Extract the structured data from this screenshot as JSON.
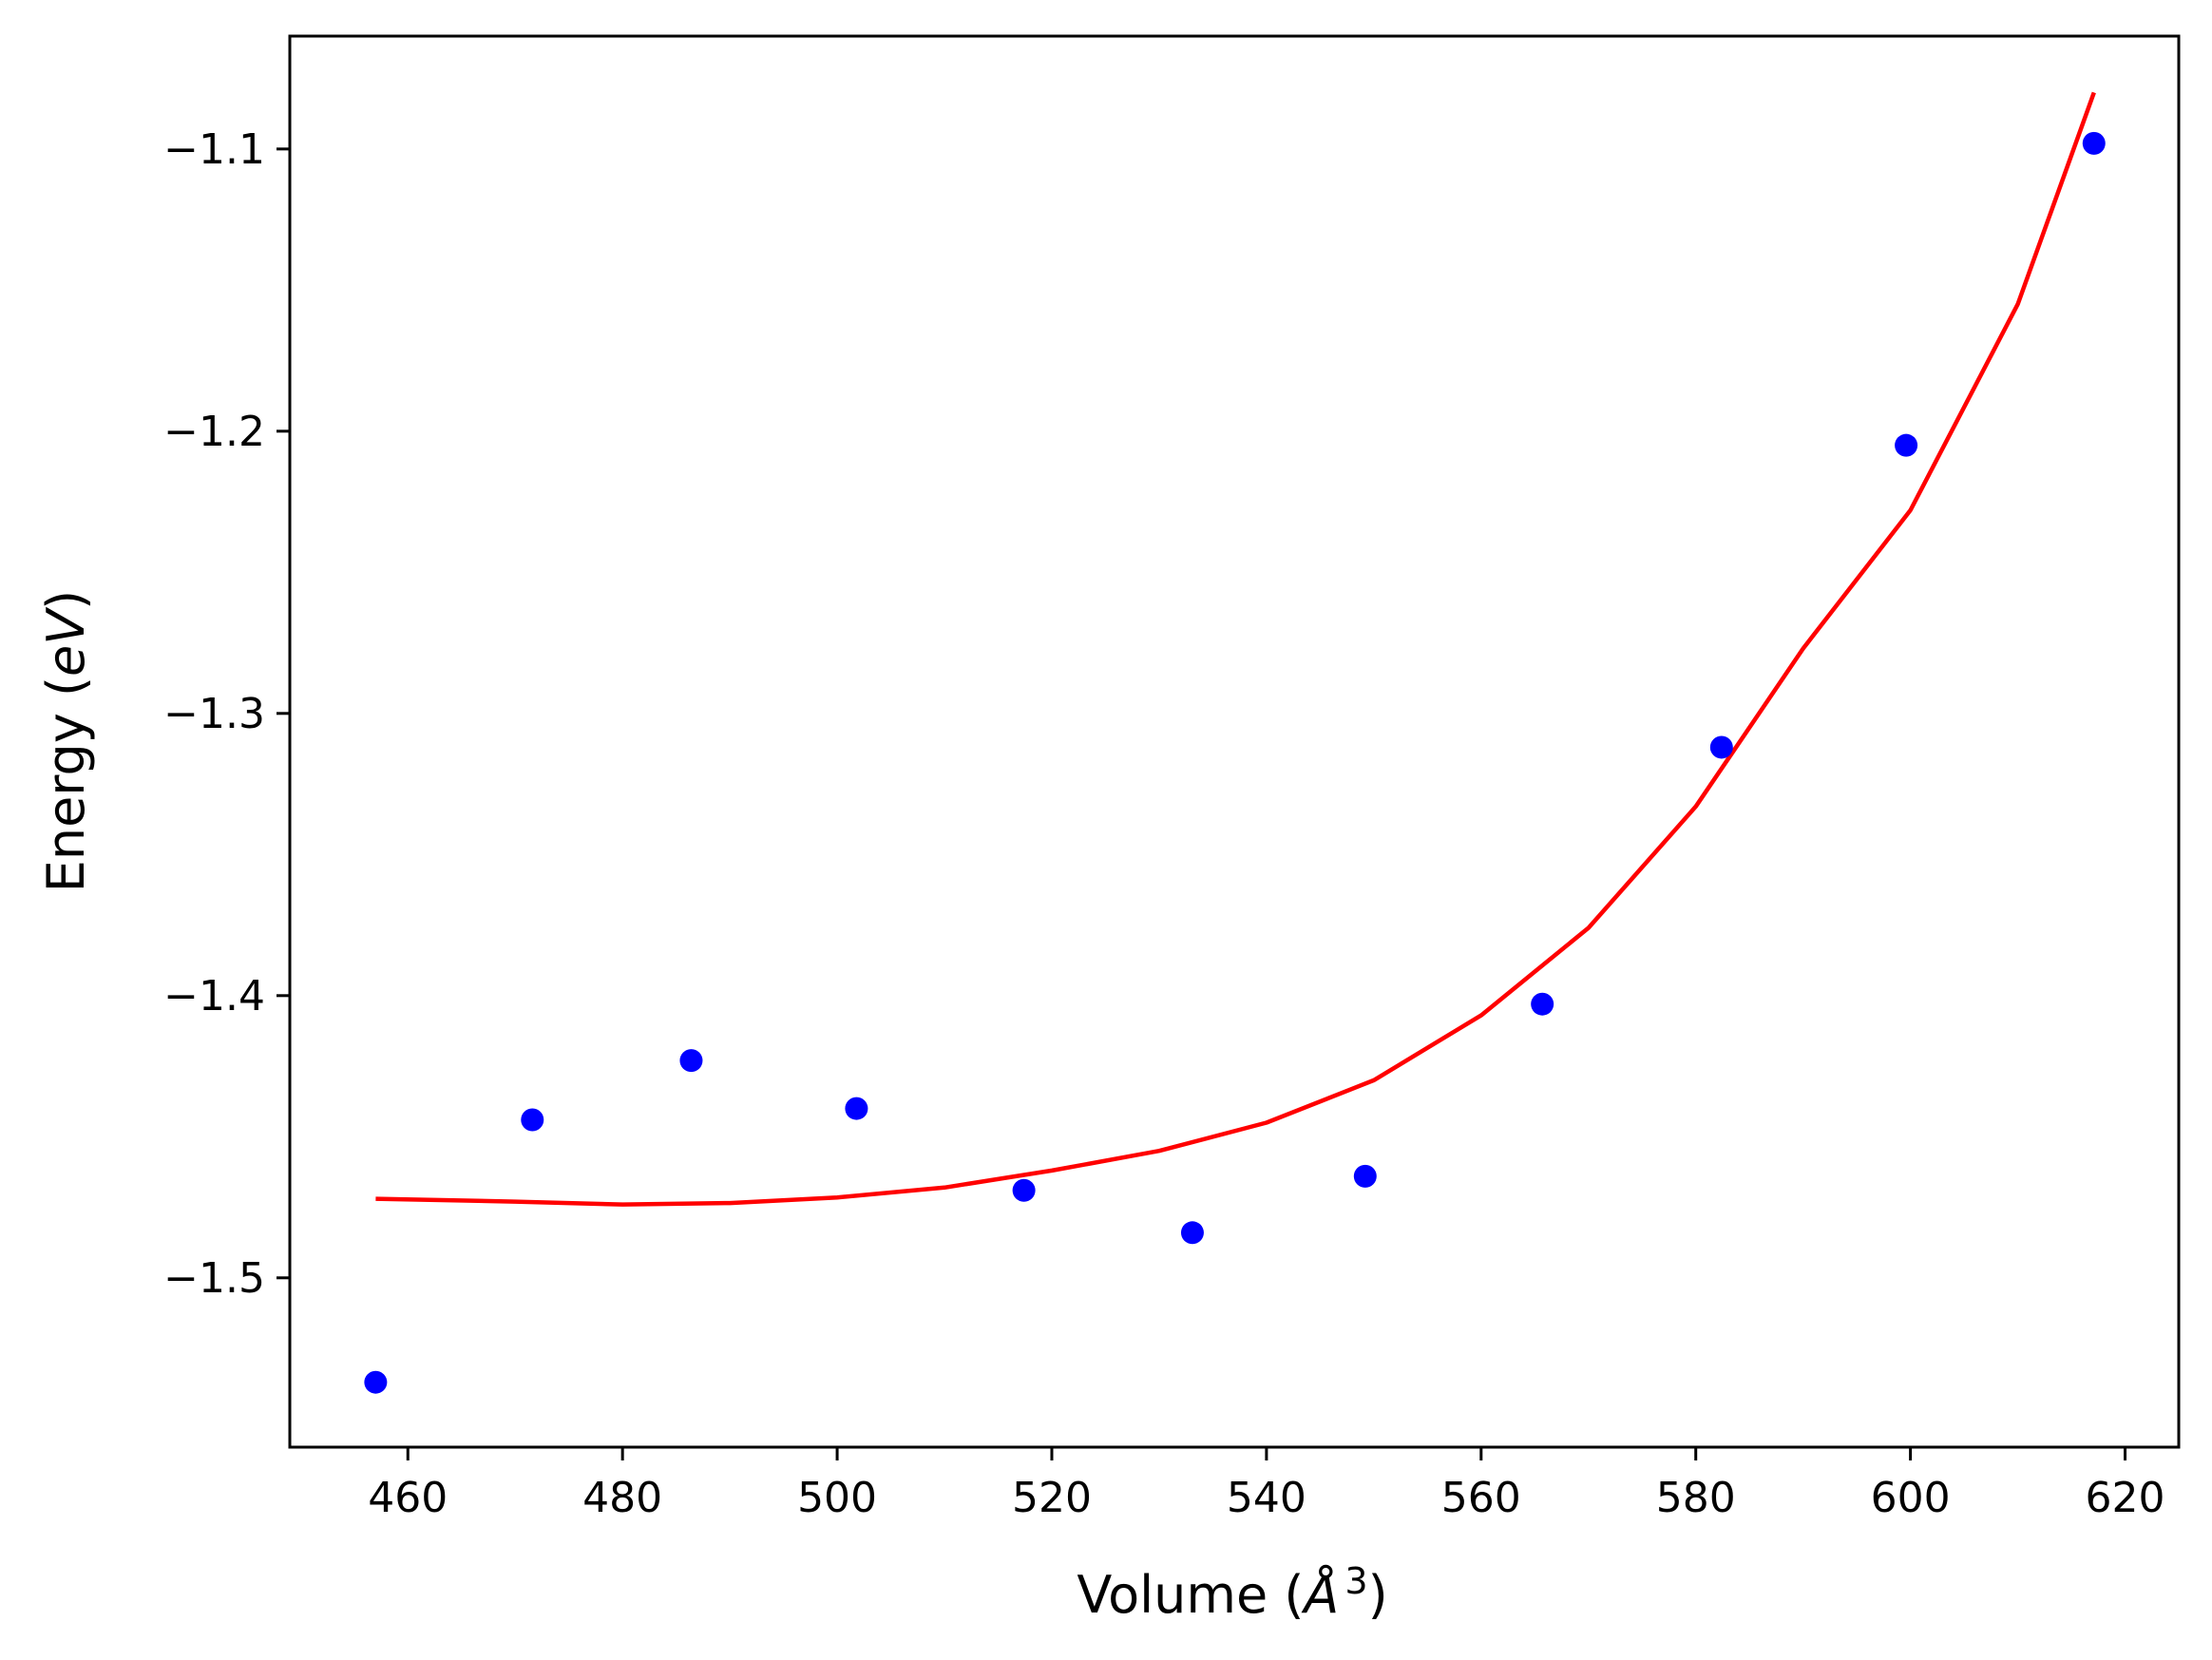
{
  "chart_data": {
    "type": "scatter",
    "xlabel_main": "Volume (",
    "xlabel_symbol": "Å",
    "xlabel_exp": "3",
    "xlabel_close": ")",
    "ylabel_main": "Energy (",
    "ylabel_unit": "eV",
    "ylabel_close": ")",
    "xlim": [
      449,
      625
    ],
    "ylim": [
      -1.56,
      -1.06
    ],
    "x_ticks": [
      460,
      480,
      500,
      520,
      540,
      560,
      580,
      600,
      620
    ],
    "y_ticks": [
      -1.5,
      -1.4,
      -1.3,
      -1.2,
      -1.1
    ],
    "y_tick_labels": [
      "−1.5",
      "−1.4",
      "−1.3",
      "−1.2",
      "−1.1"
    ],
    "grid": false,
    "series": [
      {
        "kind": "scatter",
        "color": "#0000ff",
        "x": [
          457.0,
          471.6,
          486.4,
          501.8,
          517.4,
          533.1,
          549.2,
          565.7,
          582.4,
          599.6,
          617.1
        ],
        "y": [
          -1.537,
          -1.444,
          -1.423,
          -1.44,
          -1.469,
          -1.484,
          -1.464,
          -1.403,
          -1.312,
          -1.205,
          -1.098
        ]
      },
      {
        "kind": "line",
        "color": "#ff0000",
        "x": [
          457.0,
          470.0,
          480.0,
          490.0,
          500.0,
          510.0,
          520.0,
          530.0,
          540.0,
          550.0,
          560.0,
          570.0,
          580.0,
          590.0,
          600.0,
          610.0,
          617.1
        ],
        "y": [
          -1.472,
          -1.473,
          -1.474,
          -1.4735,
          -1.4715,
          -1.468,
          -1.462,
          -1.455,
          -1.445,
          -1.43,
          -1.407,
          -1.376,
          -1.333,
          -1.277,
          -1.228,
          -1.155,
          -1.08
        ]
      }
    ]
  }
}
